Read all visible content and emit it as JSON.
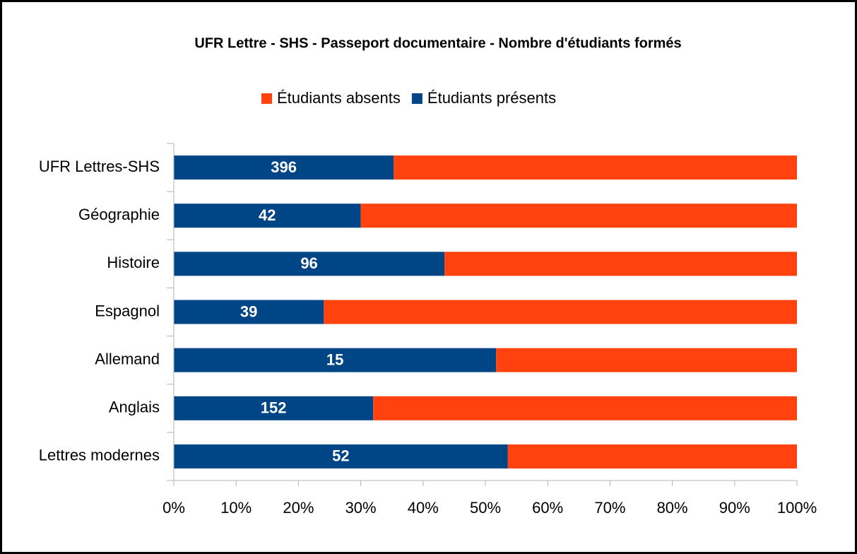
{
  "chart_data": {
    "type": "bar",
    "orientation": "horizontal",
    "stacking": "percent",
    "title": "UFR Lettre - SHS - Passeport documentaire - Nombre d'étudiants formés",
    "categories": [
      "UFR Lettres-SHS",
      "Géographie",
      "Histoire",
      "Espagnol",
      "Allemand",
      "Anglais",
      "Lettres modernes"
    ],
    "series": [
      {
        "name": "Étudiants présents",
        "color": "#004586",
        "values": [
          396,
          42,
          96,
          39,
          15,
          152,
          52
        ],
        "show_labels": true
      },
      {
        "name": "Étudiants absents",
        "color": "#ff420e",
        "values": [
          726,
          98,
          125,
          123,
          14,
          323,
          45
        ]
      }
    ],
    "xlim": [
      0,
      100
    ],
    "xticks": [
      {
        "value": 0,
        "label": "0%"
      },
      {
        "value": 10,
        "label": "10%"
      },
      {
        "value": 20,
        "label": "20%"
      },
      {
        "value": 30,
        "label": "30%"
      },
      {
        "value": 40,
        "label": "40%"
      },
      {
        "value": 50,
        "label": "50%"
      },
      {
        "value": 60,
        "label": "60%"
      },
      {
        "value": 70,
        "label": "70%"
      },
      {
        "value": 80,
        "label": "80%"
      },
      {
        "value": 90,
        "label": "90%"
      },
      {
        "value": 100,
        "label": "100%"
      }
    ],
    "legend": "top"
  }
}
